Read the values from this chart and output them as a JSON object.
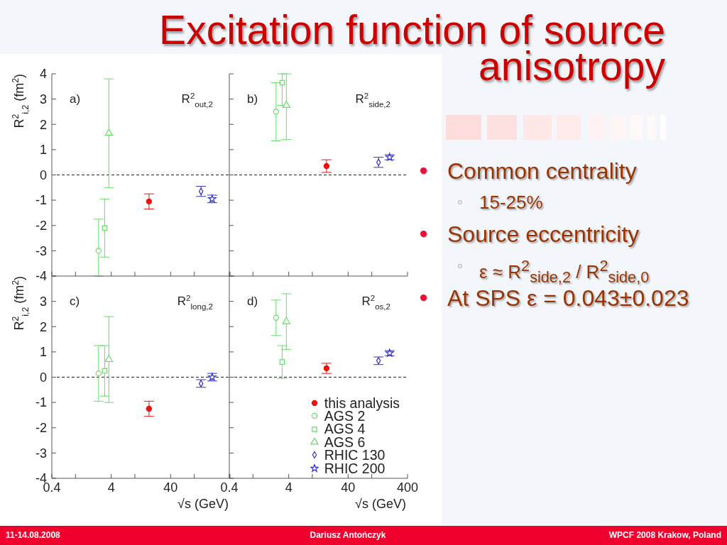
{
  "chart_data": [
    {
      "type": "scatter",
      "xlim": [
        0.4,
        400
      ],
      "ylim": [
        -4,
        4
      ],
      "log": "x",
      "tick_labels": "y",
      "ylabel": "R$^{2}$$_{i,2}$ (fm$^{2}$)",
      "annotations": [
        "a)",
        "R$^{2}$$_{out,2}$"
      ],
      "xticks": [
        0.4,
        {
          "value": 1,
          "label": null
        },
        4,
        {
          "value": 10,
          "label": null
        },
        40,
        {
          "value": 100,
          "label": null
        },
        {
          "value": 400,
          "label": null
        }
      ],
      "yticks": [
        -4,
        -3,
        -2,
        -1,
        0,
        1,
        2,
        3,
        4
      ],
      "ref_lines": [
        {
          "axis": "y",
          "value": 0,
          "line_style": "dashed",
          "color": "#222222"
        }
      ],
      "series": [
        {
          "color": "#ee1111",
          "marker": "circle",
          "x": [
            17.3
          ],
          "values": [
            -1.05
          ],
          "errors": [
            0.3
          ]
        },
        {
          "color": "#66dd66",
          "marker": "circle",
          "x": [
            2.45
          ],
          "values": [
            -3.0
          ],
          "errors": [
            [
              -4.0,
              -1.75
            ]
          ]
        },
        {
          "color": "#66dd66",
          "marker": "square",
          "x": [
            3.1
          ],
          "values": [
            -2.1
          ],
          "errors": [
            1.15
          ]
        },
        {
          "color": "#66dd66",
          "marker": "triangle",
          "x": [
            3.65
          ],
          "values": [
            1.65
          ],
          "errors": [
            2.15
          ]
        },
        {
          "color": "#3333cc",
          "marker": "diamond",
          "x": [
            130
          ],
          "values": [
            -0.65
          ],
          "errors": [
            0.2
          ]
        },
        {
          "color": "#3333cc",
          "marker": "star",
          "x": [
            200
          ],
          "values": [
            -0.95
          ],
          "errors": [
            0.15
          ]
        }
      ]
    },
    {
      "type": "scatter",
      "xlim": [
        0.4,
        400
      ],
      "ylim": [
        -4,
        4
      ],
      "log": "x",
      "tick_labels": false,
      "annotations": [
        "b)",
        "R$^{2}$$_{side,2}$"
      ],
      "xticks": [
        0.4,
        {
          "value": 1,
          "label": null
        },
        4,
        {
          "value": 10,
          "label": null
        },
        40,
        {
          "value": 100,
          "label": null
        },
        400
      ],
      "yticks": [
        -4,
        -3,
        -2,
        -1,
        0,
        1,
        2,
        3,
        4
      ],
      "ref_lines": [
        {
          "axis": "y",
          "value": 0,
          "line_style": "dashed",
          "color": "#222222"
        }
      ],
      "series": [
        {
          "color": "#ee1111",
          "marker": "circle",
          "x": [
            17.3
          ],
          "values": [
            0.35
          ],
          "errors": [
            0.25
          ]
        },
        {
          "color": "#66dd66",
          "marker": "circle",
          "x": [
            2.45
          ],
          "values": [
            2.5
          ],
          "errors": [
            1.15
          ]
        },
        {
          "color": "#66dd66",
          "marker": "square",
          "x": [
            3.1
          ],
          "values": [
            3.65
          ],
          "errors": [
            [
              2.75,
              4.0
            ]
          ]
        },
        {
          "color": "#66dd66",
          "marker": "triangle",
          "x": [
            3.65
          ],
          "values": [
            2.75
          ],
          "errors": [
            [
              1.4,
              4.0
            ]
          ]
        },
        {
          "color": "#3333cc",
          "marker": "diamond",
          "x": [
            130
          ],
          "values": [
            0.5
          ],
          "errors": [
            0.2
          ]
        },
        {
          "color": "#3333cc",
          "marker": "star",
          "x": [
            200
          ],
          "values": [
            0.7
          ],
          "errors": [
            0.1
          ]
        }
      ]
    },
    {
      "type": "scatter",
      "xlim": [
        0.4,
        400
      ],
      "ylim": [
        -4,
        4
      ],
      "log": "x",
      "ylabel": "R$^{2}$$_{i,2}$ (fm$^{2}$)",
      "xlabel": "√s (GeV)",
      "annotations": [
        "c)",
        "R$^{2}$$_{long,2}$"
      ],
      "xticks": [
        0.4,
        {
          "value": 1,
          "label": null
        },
        4,
        {
          "value": 10,
          "label": null
        },
        40,
        {
          "value": 100,
          "label": null
        },
        {
          "value": 400,
          "label": null
        }
      ],
      "yticks": [
        -4,
        -3,
        -2,
        -1,
        0,
        1,
        2,
        3,
        {
          "value": 4,
          "label": null
        }
      ],
      "ref_lines": [
        {
          "axis": "y",
          "value": 0,
          "line_style": "dashed",
          "color": "#222222"
        }
      ],
      "series": [
        {
          "color": "#ee1111",
          "marker": "circle",
          "x": [
            17.3
          ],
          "values": [
            -1.25
          ],
          "errors": [
            0.3
          ]
        },
        {
          "color": "#66dd66",
          "marker": "circle",
          "x": [
            2.45
          ],
          "values": [
            0.15
          ],
          "errors": [
            1.1
          ]
        },
        {
          "color": "#66dd66",
          "marker": "square",
          "x": [
            3.1
          ],
          "values": [
            0.25
          ],
          "errors": [
            1.0
          ]
        },
        {
          "color": "#66dd66",
          "marker": "triangle",
          "x": [
            3.65
          ],
          "values": [
            0.7
          ],
          "errors": [
            1.7
          ]
        },
        {
          "color": "#3333cc",
          "marker": "diamond",
          "x": [
            130
          ],
          "values": [
            -0.25
          ],
          "errors": [
            0.15
          ]
        },
        {
          "color": "#3333cc",
          "marker": "star",
          "x": [
            200
          ],
          "values": [
            0
          ],
          "errors": [
            0.15
          ]
        }
      ]
    },
    {
      "type": "scatter",
      "xlim": [
        0.4,
        400
      ],
      "ylim": [
        -4,
        4
      ],
      "log": "x",
      "tick_labels": "x",
      "xlabel": "√s (GeV)",
      "legend": "bottom right",
      "annotations": [
        "d)",
        "R$^{2}$$_{os,2}$"
      ],
      "xticks": [
        0.4,
        {
          "value": 1,
          "label": null
        },
        4,
        {
          "value": 10,
          "label": null
        },
        40,
        {
          "value": 100,
          "label": null
        },
        400
      ],
      "yticks": [
        -4,
        -3,
        -2,
        -1,
        0,
        1,
        2,
        3,
        4
      ],
      "ref_lines": [
        {
          "axis": "y",
          "value": 0,
          "line_style": "dashed",
          "color": "#222222"
        }
      ],
      "series": [
        {
          "name": "this analysis",
          "color": "#ee1111",
          "marker": "circle",
          "x": [
            17.3
          ],
          "values": [
            0.35
          ],
          "errors": [
            0.2
          ]
        },
        {
          "name": "AGS 2",
          "color": "#66dd66",
          "marker": "circle",
          "x": [
            2.45
          ],
          "values": [
            2.35
          ],
          "errors": [
            0.7
          ]
        },
        {
          "name": "AGS 4",
          "color": "#66dd66",
          "marker": "square",
          "x": [
            3.1
          ],
          "values": [
            0.6
          ],
          "errors": [
            0.65
          ]
        },
        {
          "name": "AGS 6",
          "color": "#66dd66",
          "marker": "triangle",
          "x": [
            3.65
          ],
          "values": [
            2.2
          ],
          "errors": [
            1.1
          ]
        },
        {
          "name": "RHIC 130",
          "color": "#3333cc",
          "marker": "diamond",
          "x": [
            130
          ],
          "values": [
            0.65
          ],
          "errors": [
            0.15
          ]
        },
        {
          "name": "RHIC 200",
          "color": "#3333cc",
          "marker": "star",
          "x": [
            200
          ],
          "values": [
            0.95
          ],
          "errors": [
            0.1
          ]
        }
      ]
    },
    {
      "type": "other",
      "title": "Excitation function of source anisotropy",
      "annotations": [
        "Common centrality",
        "15-25%",
        "Source eccentricity",
        "ε ≈ R$^{2}$$_{side,2}$ / R$^{2}$$_{side,0}$",
        "At SPS ε = 0.043±0.023",
        "11-14.08.2008",
        "Dariusz Antończyk",
        "WPCF 2008 Krakow, Poland"
      ]
    }
  ]
}
